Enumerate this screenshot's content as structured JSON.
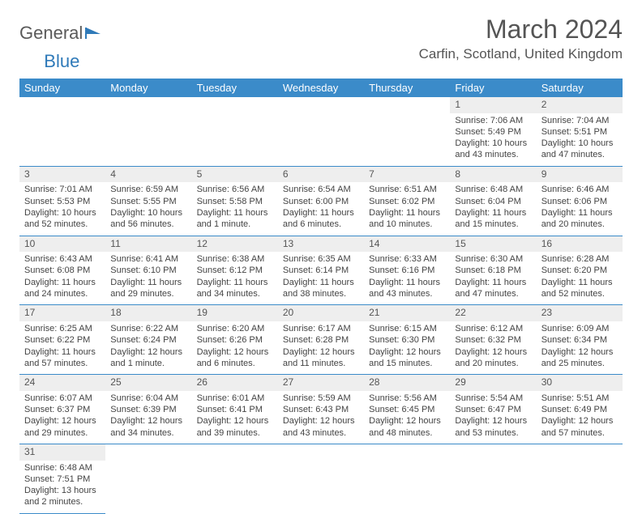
{
  "logo": {
    "text1": "General",
    "text2": "Blue"
  },
  "title": "March 2024",
  "location": "Carfin, Scotland, United Kingdom",
  "theme": {
    "header_bg": "#3b8bc9",
    "header_fg": "#ffffff",
    "daynum_bg": "#eeeeee",
    "border": "#3b8bc9"
  },
  "day_headers": [
    "Sunday",
    "Monday",
    "Tuesday",
    "Wednesday",
    "Thursday",
    "Friday",
    "Saturday"
  ],
  "weeks": [
    [
      null,
      null,
      null,
      null,
      null,
      {
        "n": "1",
        "sr": "Sunrise: 7:06 AM",
        "ss": "Sunset: 5:49 PM",
        "dl": "Daylight: 10 hours and 43 minutes."
      },
      {
        "n": "2",
        "sr": "Sunrise: 7:04 AM",
        "ss": "Sunset: 5:51 PM",
        "dl": "Daylight: 10 hours and 47 minutes."
      }
    ],
    [
      {
        "n": "3",
        "sr": "Sunrise: 7:01 AM",
        "ss": "Sunset: 5:53 PM",
        "dl": "Daylight: 10 hours and 52 minutes."
      },
      {
        "n": "4",
        "sr": "Sunrise: 6:59 AM",
        "ss": "Sunset: 5:55 PM",
        "dl": "Daylight: 10 hours and 56 minutes."
      },
      {
        "n": "5",
        "sr": "Sunrise: 6:56 AM",
        "ss": "Sunset: 5:58 PM",
        "dl": "Daylight: 11 hours and 1 minute."
      },
      {
        "n": "6",
        "sr": "Sunrise: 6:54 AM",
        "ss": "Sunset: 6:00 PM",
        "dl": "Daylight: 11 hours and 6 minutes."
      },
      {
        "n": "7",
        "sr": "Sunrise: 6:51 AM",
        "ss": "Sunset: 6:02 PM",
        "dl": "Daylight: 11 hours and 10 minutes."
      },
      {
        "n": "8",
        "sr": "Sunrise: 6:48 AM",
        "ss": "Sunset: 6:04 PM",
        "dl": "Daylight: 11 hours and 15 minutes."
      },
      {
        "n": "9",
        "sr": "Sunrise: 6:46 AM",
        "ss": "Sunset: 6:06 PM",
        "dl": "Daylight: 11 hours and 20 minutes."
      }
    ],
    [
      {
        "n": "10",
        "sr": "Sunrise: 6:43 AM",
        "ss": "Sunset: 6:08 PM",
        "dl": "Daylight: 11 hours and 24 minutes."
      },
      {
        "n": "11",
        "sr": "Sunrise: 6:41 AM",
        "ss": "Sunset: 6:10 PM",
        "dl": "Daylight: 11 hours and 29 minutes."
      },
      {
        "n": "12",
        "sr": "Sunrise: 6:38 AM",
        "ss": "Sunset: 6:12 PM",
        "dl": "Daylight: 11 hours and 34 minutes."
      },
      {
        "n": "13",
        "sr": "Sunrise: 6:35 AM",
        "ss": "Sunset: 6:14 PM",
        "dl": "Daylight: 11 hours and 38 minutes."
      },
      {
        "n": "14",
        "sr": "Sunrise: 6:33 AM",
        "ss": "Sunset: 6:16 PM",
        "dl": "Daylight: 11 hours and 43 minutes."
      },
      {
        "n": "15",
        "sr": "Sunrise: 6:30 AM",
        "ss": "Sunset: 6:18 PM",
        "dl": "Daylight: 11 hours and 47 minutes."
      },
      {
        "n": "16",
        "sr": "Sunrise: 6:28 AM",
        "ss": "Sunset: 6:20 PM",
        "dl": "Daylight: 11 hours and 52 minutes."
      }
    ],
    [
      {
        "n": "17",
        "sr": "Sunrise: 6:25 AM",
        "ss": "Sunset: 6:22 PM",
        "dl": "Daylight: 11 hours and 57 minutes."
      },
      {
        "n": "18",
        "sr": "Sunrise: 6:22 AM",
        "ss": "Sunset: 6:24 PM",
        "dl": "Daylight: 12 hours and 1 minute."
      },
      {
        "n": "19",
        "sr": "Sunrise: 6:20 AM",
        "ss": "Sunset: 6:26 PM",
        "dl": "Daylight: 12 hours and 6 minutes."
      },
      {
        "n": "20",
        "sr": "Sunrise: 6:17 AM",
        "ss": "Sunset: 6:28 PM",
        "dl": "Daylight: 12 hours and 11 minutes."
      },
      {
        "n": "21",
        "sr": "Sunrise: 6:15 AM",
        "ss": "Sunset: 6:30 PM",
        "dl": "Daylight: 12 hours and 15 minutes."
      },
      {
        "n": "22",
        "sr": "Sunrise: 6:12 AM",
        "ss": "Sunset: 6:32 PM",
        "dl": "Daylight: 12 hours and 20 minutes."
      },
      {
        "n": "23",
        "sr": "Sunrise: 6:09 AM",
        "ss": "Sunset: 6:34 PM",
        "dl": "Daylight: 12 hours and 25 minutes."
      }
    ],
    [
      {
        "n": "24",
        "sr": "Sunrise: 6:07 AM",
        "ss": "Sunset: 6:37 PM",
        "dl": "Daylight: 12 hours and 29 minutes."
      },
      {
        "n": "25",
        "sr": "Sunrise: 6:04 AM",
        "ss": "Sunset: 6:39 PM",
        "dl": "Daylight: 12 hours and 34 minutes."
      },
      {
        "n": "26",
        "sr": "Sunrise: 6:01 AM",
        "ss": "Sunset: 6:41 PM",
        "dl": "Daylight: 12 hours and 39 minutes."
      },
      {
        "n": "27",
        "sr": "Sunrise: 5:59 AM",
        "ss": "Sunset: 6:43 PM",
        "dl": "Daylight: 12 hours and 43 minutes."
      },
      {
        "n": "28",
        "sr": "Sunrise: 5:56 AM",
        "ss": "Sunset: 6:45 PM",
        "dl": "Daylight: 12 hours and 48 minutes."
      },
      {
        "n": "29",
        "sr": "Sunrise: 5:54 AM",
        "ss": "Sunset: 6:47 PM",
        "dl": "Daylight: 12 hours and 53 minutes."
      },
      {
        "n": "30",
        "sr": "Sunrise: 5:51 AM",
        "ss": "Sunset: 6:49 PM",
        "dl": "Daylight: 12 hours and 57 minutes."
      }
    ],
    [
      {
        "n": "31",
        "sr": "Sunrise: 6:48 AM",
        "ss": "Sunset: 7:51 PM",
        "dl": "Daylight: 13 hours and 2 minutes."
      },
      null,
      null,
      null,
      null,
      null,
      null
    ]
  ]
}
